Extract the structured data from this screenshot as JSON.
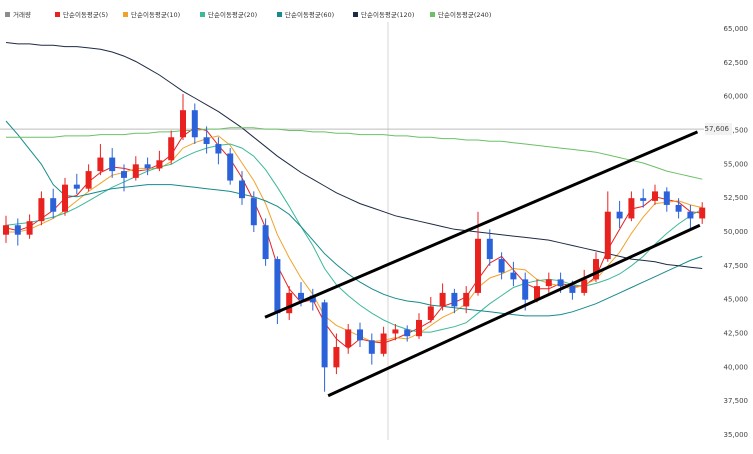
{
  "chart_data": {
    "type": "candlestick",
    "ylim": [
      35000,
      65000
    ],
    "yticks": [
      {
        "value": 35000,
        "label": "35,000"
      },
      {
        "value": 37500,
        "label": "37,500"
      },
      {
        "value": 40000,
        "label": "40,000"
      },
      {
        "value": 42500,
        "label": "42,500"
      },
      {
        "value": 45000,
        "label": "45,000"
      },
      {
        "value": 47500,
        "label": "47,500"
      },
      {
        "value": 50000,
        "label": "50,000"
      },
      {
        "value": 52500,
        "label": "52,500"
      },
      {
        "value": 55000,
        "label": "55,000"
      },
      {
        "value": 57500,
        "label": "57,500"
      },
      {
        "value": 60000,
        "label": "60,000"
      },
      {
        "value": 62500,
        "label": "62,500"
      },
      {
        "value": 65000,
        "label": "65,000"
      }
    ],
    "grid": false,
    "price_marker": {
      "value": 57606,
      "label": "57,606"
    },
    "up_color": "#e8221f",
    "down_color": "#2b62d9",
    "candles": {
      "open": [
        49800,
        50500,
        49800,
        50800,
        52500,
        51500,
        53500,
        53200,
        54500,
        55500,
        54500,
        54000,
        55000,
        54700,
        55300,
        57000,
        59000,
        57000,
        56500,
        55800,
        53800,
        52500,
        50500,
        48000,
        44000,
        45500,
        45300,
        44800,
        40000,
        41500,
        42800,
        42000,
        41000,
        42500,
        42800,
        42300,
        43500,
        44500,
        45500,
        44500,
        45500,
        49500,
        48000,
        47000,
        46500,
        45000,
        46000,
        46500,
        46000,
        45500,
        46500,
        48000,
        51500,
        51000,
        52500,
        52300,
        53000,
        52000,
        51500,
        51000
      ],
      "high": [
        51200,
        51000,
        51300,
        53000,
        53200,
        54000,
        54300,
        55000,
        56500,
        56200,
        55000,
        55600,
        55500,
        56000,
        57500,
        60200,
        59500,
        57800,
        57000,
        56200,
        54500,
        53000,
        51000,
        48200,
        46000,
        46300,
        45800,
        45000,
        42500,
        43200,
        43300,
        42500,
        43000,
        43200,
        43100,
        44000,
        45200,
        46200,
        45800,
        46000,
        51500,
        50200,
        48500,
        47800,
        47000,
        46500,
        47000,
        47000,
        46400,
        47200,
        48500,
        53000,
        52300,
        53000,
        53200,
        53500,
        53300,
        52500,
        52000,
        52200
      ],
      "low": [
        49200,
        49000,
        49500,
        50500,
        51000,
        51200,
        52800,
        53000,
        54200,
        54000,
        53000,
        53800,
        54200,
        54500,
        55000,
        56800,
        56500,
        55800,
        55000,
        53500,
        52000,
        50000,
        47500,
        43200,
        43500,
        44500,
        44200,
        38200,
        39500,
        41000,
        41500,
        40200,
        40800,
        42000,
        41900,
        42100,
        43300,
        44200,
        44000,
        44000,
        45300,
        47500,
        46500,
        46000,
        44200,
        44800,
        45500,
        45500,
        45000,
        45300,
        46300,
        47800,
        50300,
        50800,
        51800,
        52000,
        51500,
        51000,
        50300,
        50600
      ],
      "close": [
        50500,
        49800,
        50800,
        52500,
        51500,
        53500,
        53200,
        54500,
        55500,
        54500,
        54000,
        55000,
        54700,
        55300,
        57000,
        59000,
        57000,
        56500,
        55800,
        53800,
        52500,
        50500,
        48000,
        44000,
        45500,
        45000,
        44800,
        40000,
        41500,
        42800,
        42000,
        41000,
        42500,
        42800,
        42300,
        43500,
        44500,
        45500,
        44500,
        45500,
        49500,
        48000,
        47000,
        46500,
        45000,
        46000,
        46500,
        46000,
        45500,
        46500,
        48000,
        51500,
        51000,
        52500,
        52300,
        53000,
        52000,
        51500,
        51000,
        51800
      ]
    },
    "series": [
      {
        "name": "거래량",
        "color": "#8c8c8c"
      },
      {
        "name": "단순이동평균(5)",
        "color": "#e8221f",
        "values": [
          50300,
          50100,
          50400,
          51000,
          51600,
          52500,
          52700,
          53700,
          54400,
          54800,
          54700,
          54500,
          54600,
          55000,
          55700,
          57100,
          57700,
          57500,
          56400,
          55400,
          54000,
          52300,
          50300,
          47500,
          45800,
          44800,
          45000,
          43300,
          42100,
          41400,
          42100,
          41900,
          41800,
          42100,
          42500,
          42900,
          43400,
          44500,
          44800,
          45200,
          46500,
          47700,
          48200,
          47200,
          46200,
          45800,
          45800,
          46200,
          46000,
          46000,
          46700,
          48700,
          50200,
          51700,
          51900,
          52600,
          52400,
          52200,
          51500,
          51400
        ]
      },
      {
        "name": "단순이동평균(10)",
        "color": "#f0a32a",
        "values": [
          50000,
          50000,
          50200,
          50600,
          51000,
          51600,
          52300,
          53000,
          53600,
          54200,
          54400,
          54700,
          54700,
          54700,
          55200,
          56200,
          56600,
          56900,
          57100,
          56400,
          55100,
          53800,
          52100,
          49800,
          48100,
          46600,
          45400,
          43800,
          43100,
          42700,
          42300,
          41900,
          42000,
          42200,
          42100,
          42500,
          43100,
          43700,
          44100,
          44700,
          45900,
          46600,
          46900,
          47300,
          47200,
          46500,
          46200,
          46000,
          45800,
          46100,
          46500,
          47500,
          48500,
          49900,
          51100,
          52100,
          52200,
          52300,
          52000,
          51800
        ]
      },
      {
        "name": "단순이동평균(20)",
        "color": "#3cb89a",
        "values": [
          50500,
          50600,
          50700,
          50900,
          51100,
          51400,
          51800,
          52300,
          52800,
          53300,
          53700,
          54100,
          54500,
          54800,
          55000,
          55500,
          55900,
          56200,
          56400,
          56500,
          56200,
          55600,
          54600,
          53300,
          51900,
          50400,
          49000,
          47300,
          46100,
          45300,
          44600,
          44000,
          43500,
          43100,
          42800,
          42600,
          42600,
          42800,
          43000,
          43300,
          44000,
          44700,
          45300,
          45900,
          46200,
          46400,
          46500,
          46400,
          46100,
          46000,
          46200,
          46500,
          46900,
          47500,
          48200,
          49100,
          49900,
          50600,
          51200,
          51700
        ]
      },
      {
        "name": "단순이동평균(60)",
        "color": "#168a8c",
        "values": [
          58200,
          57200,
          56100,
          55000,
          53500,
          52700,
          52600,
          52800,
          53000,
          53200,
          53300,
          53400,
          53500,
          53500,
          53500,
          53400,
          53300,
          53200,
          53100,
          53000,
          52800,
          52600,
          52300,
          51900,
          51300,
          50400,
          49400,
          48400,
          47600,
          46900,
          46300,
          45800,
          45400,
          45100,
          44900,
          44800,
          44600,
          44500,
          44400,
          44300,
          44200,
          44100,
          44000,
          43900,
          43800,
          43800,
          43800,
          43900,
          44100,
          44400,
          44700,
          45100,
          45500,
          45900,
          46300,
          46700,
          47100,
          47500,
          47900,
          48200
        ]
      },
      {
        "name": "단순이동평균(120)",
        "color": "#1d2b45",
        "values": [
          64000,
          63900,
          63900,
          63800,
          63800,
          63700,
          63700,
          63600,
          63500,
          63300,
          63000,
          62600,
          62100,
          61600,
          61000,
          60400,
          59900,
          59400,
          58900,
          58300,
          57700,
          57000,
          56300,
          55600,
          55000,
          54400,
          53900,
          53400,
          52900,
          52500,
          52100,
          51800,
          51500,
          51200,
          51000,
          50800,
          50600,
          50400,
          50200,
          50100,
          50000,
          49900,
          49800,
          49700,
          49600,
          49500,
          49400,
          49200,
          49000,
          48800,
          48600,
          48400,
          48200,
          48000,
          47900,
          47800,
          47600,
          47500,
          47400,
          47300
        ]
      },
      {
        "name": "단순이동평균(240)",
        "color": "#6cc065",
        "values": [
          57000,
          57000,
          57000,
          57000,
          57000,
          57100,
          57100,
          57100,
          57200,
          57200,
          57200,
          57300,
          57300,
          57400,
          57400,
          57500,
          57500,
          57600,
          57600,
          57700,
          57700,
          57700,
          57600,
          57600,
          57500,
          57500,
          57400,
          57400,
          57300,
          57300,
          57200,
          57200,
          57200,
          57100,
          57100,
          57000,
          57000,
          56900,
          56900,
          56800,
          56800,
          56700,
          56700,
          56600,
          56500,
          56400,
          56300,
          56200,
          56100,
          56000,
          55900,
          55700,
          55500,
          55300,
          55100,
          54800,
          54500,
          54300,
          54100,
          53900
        ]
      }
    ],
    "trendlines": [
      {
        "x": [
          21.95,
          58.6
        ],
        "y": [
          43700,
          57400
        ]
      },
      {
        "x": [
          27.3,
          58.8
        ],
        "y": [
          37900,
          50500
        ]
      }
    ]
  }
}
